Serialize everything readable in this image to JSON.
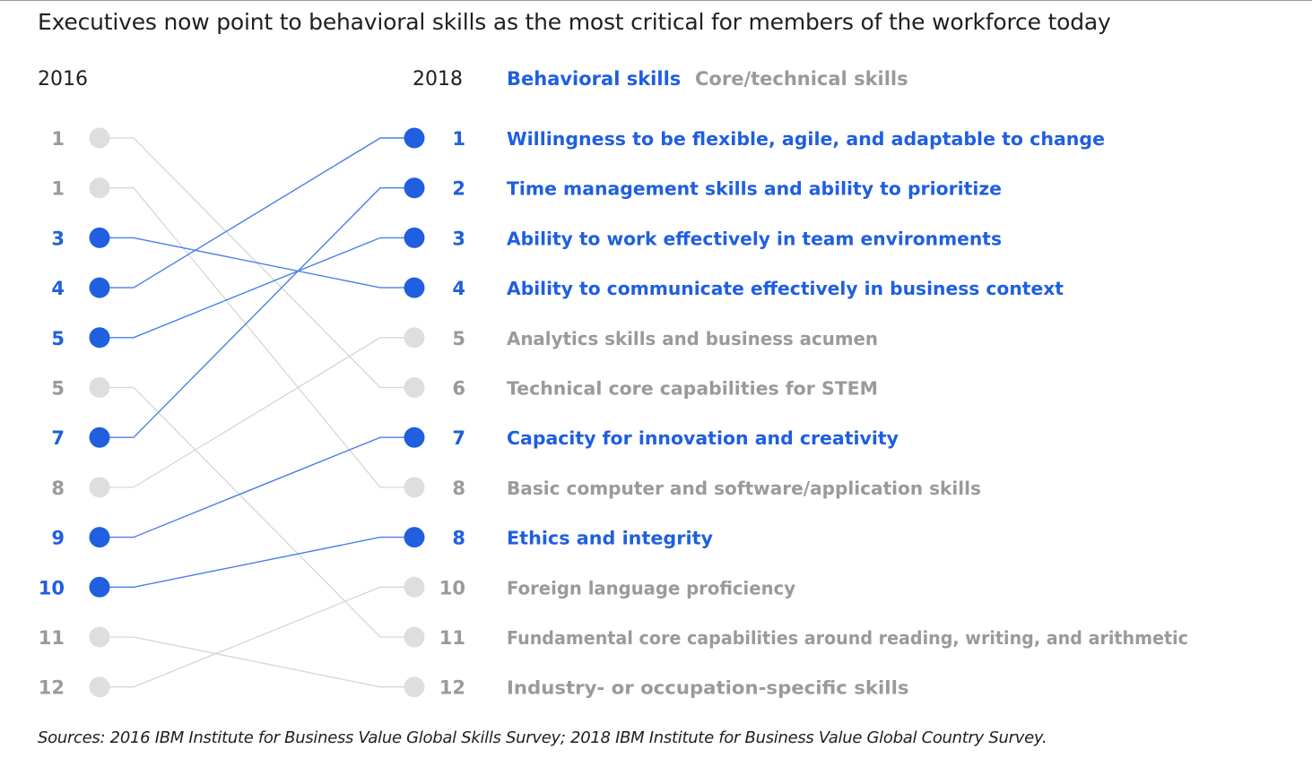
{
  "title": "Executives now point to behavioral skills as the most critical for members of the workforce today",
  "source": "Sources: 2016 IBM Institute for Business Value Global Skills Survey; 2018 IBM Institute for Business Value Global Country Survey.",
  "colors": {
    "behavioral": "#1f5fe0",
    "core": "#9a9a9a",
    "dot_core": "#dedede",
    "line_core": "#d6d6d6",
    "line_behavioral": "#4a7fe8"
  },
  "chart_data": {
    "type": "slope",
    "year_left": "2016",
    "year_right": "2018",
    "legend": [
      {
        "label": "Behavioral skills",
        "category": "behavioral"
      },
      {
        "label": "Core/technical skills",
        "category": "core"
      }
    ],
    "left_ranks": [
      "1",
      "1",
      "3",
      "4",
      "5",
      "5",
      "7",
      "8",
      "9",
      "10",
      "11",
      "12"
    ],
    "left_categories": [
      "core",
      "core",
      "behavioral",
      "behavioral",
      "behavioral",
      "core",
      "behavioral",
      "core",
      "behavioral",
      "behavioral",
      "core",
      "core"
    ],
    "right_items": [
      {
        "rank": "1",
        "label": "Willingness to be flexible, agile, and adaptable to change",
        "category": "behavioral",
        "from_row": 4
      },
      {
        "rank": "2",
        "label": "Time management skills and ability to prioritize",
        "category": "behavioral",
        "from_row": 7
      },
      {
        "rank": "3",
        "label": "Ability to work effectively in team environments",
        "category": "behavioral",
        "from_row": 5
      },
      {
        "rank": "4",
        "label": "Ability to communicate effectively in business context",
        "category": "behavioral",
        "from_row": 3
      },
      {
        "rank": "5",
        "label": "Analytics skills and business acumen",
        "category": "core",
        "from_row": 8
      },
      {
        "rank": "6",
        "label": "Technical core capabilities for STEM",
        "category": "core",
        "from_row": 1
      },
      {
        "rank": "7",
        "label": "Capacity for innovation and creativity",
        "category": "behavioral",
        "from_row": 9
      },
      {
        "rank": "8",
        "label": "Basic computer and software/application skills",
        "category": "core",
        "from_row": 2
      },
      {
        "rank": "8",
        "label": "Ethics and integrity",
        "category": "behavioral",
        "from_row": 10
      },
      {
        "rank": "10",
        "label": "Foreign language proficiency",
        "category": "core",
        "from_row": 12
      },
      {
        "rank": "11",
        "label": "Fundamental core capabilities around reading, writing, and arithmetic",
        "category": "core",
        "from_row": 6
      },
      {
        "rank": "12",
        "label": "Industry- or occupation-specific skills",
        "category": "core",
        "from_row": 11
      }
    ]
  }
}
